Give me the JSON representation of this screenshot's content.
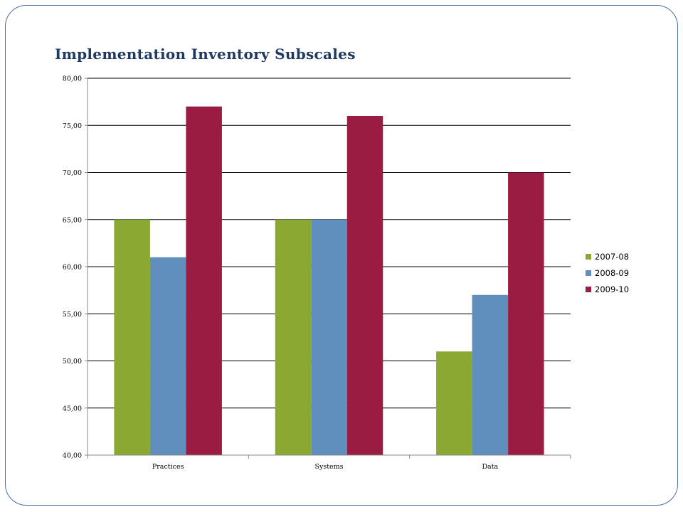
{
  "slide": {
    "title": "Implementation Inventory Subscales"
  },
  "chart_data": {
    "type": "bar",
    "title": "Implementation Inventory Subscales",
    "categories": [
      "Practices",
      "Systems",
      "Data"
    ],
    "series": [
      {
        "name": "2007-08",
        "values": [
          65,
          65,
          51
        ],
        "color": "#8ba832"
      },
      {
        "name": "2008-09",
        "values": [
          61,
          65,
          57
        ],
        "color": "#618fbd"
      },
      {
        "name": "2009-10",
        "values": [
          77,
          76,
          70
        ],
        "color": "#9b1c43"
      }
    ],
    "ylim": [
      40,
      80
    ],
    "yticks": [
      40,
      45,
      50,
      55,
      60,
      65,
      70,
      75,
      80
    ],
    "ytick_labels": [
      "40,00",
      "45,00",
      "50,00",
      "55,00",
      "60,00",
      "65,00",
      "70,00",
      "75,00",
      "80,00"
    ],
    "xlabel": "",
    "ylabel": "",
    "grid": true,
    "legend_position": "right"
  }
}
